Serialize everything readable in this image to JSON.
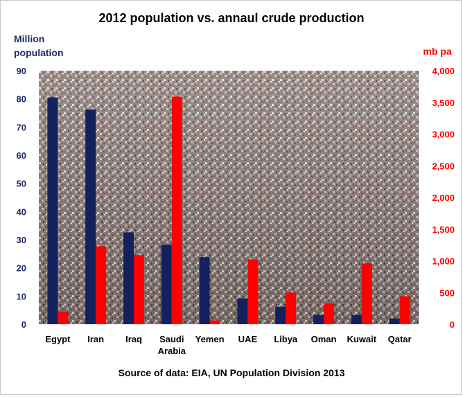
{
  "chart_data": {
    "type": "bar",
    "title": "2012 population vs. annaul  crude production",
    "left_axis": {
      "label_lines": [
        "Million",
        "population"
      ],
      "ylim": [
        0,
        90
      ],
      "ticks": [
        0,
        10,
        20,
        30,
        40,
        50,
        60,
        70,
        80,
        90
      ],
      "color": "#1f2c6b"
    },
    "right_axis": {
      "label": "mb pa",
      "ylim": [
        0,
        4000
      ],
      "ticks": [
        "0",
        "500",
        "1,000",
        "1,500",
        "2,000",
        "2,500",
        "3,000",
        "3,500",
        "4,000"
      ],
      "tick_values": [
        0,
        500,
        1000,
        1500,
        2000,
        2500,
        3000,
        3500,
        4000
      ],
      "color": "#ff0000"
    },
    "categories": [
      [
        "Egypt"
      ],
      [
        "Iran"
      ],
      [
        "Iraq"
      ],
      [
        "Saudi",
        "Arabia"
      ],
      [
        "Yemen"
      ],
      [
        "UAE"
      ],
      [
        "Libya"
      ],
      [
        "Oman"
      ],
      [
        "Kuwait"
      ],
      [
        "Qatar"
      ]
    ],
    "series": [
      {
        "axis": "left",
        "color": "#14215f",
        "values": [
          80.5,
          76.2,
          32.6,
          28.2,
          23.8,
          9.2,
          6.2,
          3.3,
          3.3,
          2.0
        ]
      },
      {
        "axis": "right",
        "color": "#ff0000",
        "values": [
          200,
          1230,
          1090,
          3590,
          60,
          1020,
          500,
          330,
          960,
          440
        ]
      }
    ],
    "grid": false,
    "legend": "none"
  },
  "source_text": "Source of data: EIA, UN Population Division 2013"
}
